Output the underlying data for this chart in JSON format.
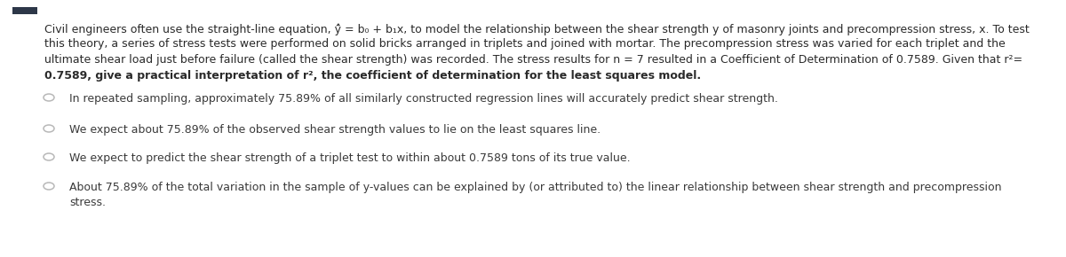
{
  "background_color": "#ffffff",
  "top_bar_color": "#2d3748",
  "paragraph_lines": [
    "Civil engineers often use the straight-line equation, ŷ̂ = b₀ + b₁x, to model the relationship between the shear strength y of masonry joints and precompression stress, x. To test",
    "this theory, a series of stress tests were performed on solid bricks arranged in triplets and joined with mortar. The precompression stress was varied for each triplet and the",
    "ultimate shear load just before failure (called the shear strength) was recorded. The stress results for n = 7 resulted in a Coefficient of Determination of 0.7589. Given that r²=",
    "0.7589, give a practical interpretation of r², the coefficient of determination for the least squares model."
  ],
  "options": [
    "In repeated sampling, approximately 75.89% of all similarly constructed regression lines will accurately predict shear strength.",
    "We expect about 75.89% of the observed shear strength values to lie on the least squares line.",
    "We expect to predict the shear strength of a triplet test to within about 0.7589 tons of its true value.",
    "About 75.89% of the total variation in the sample of y-values can be explained by (or attributed to) the linear relationship between shear strength and precompression\nstress."
  ],
  "text_color": "#2a2a2a",
  "option_text_color": "#3a3a3a",
  "font_size_paragraph": 9.0,
  "font_size_options": 9.0,
  "fig_width": 12.0,
  "fig_height": 2.9,
  "dpi": 100
}
